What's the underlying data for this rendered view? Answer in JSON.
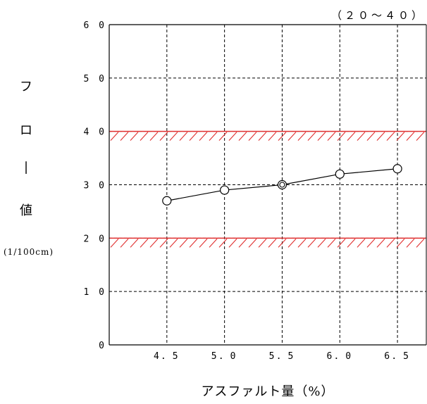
{
  "chart_data": {
    "type": "line",
    "x": [
      4.5,
      5.0,
      5.5,
      6.0,
      6.5
    ],
    "x_tick_labels": [
      "4．5",
      "5．0",
      "5．5",
      "6．0",
      "6．5"
    ],
    "y": [
      27,
      29,
      30,
      32,
      33
    ],
    "y_ticks": [
      0,
      10,
      20,
      30,
      40,
      50,
      60
    ],
    "y_tick_labels": [
      "0",
      "1 0",
      "2 0",
      "3 0",
      "4 0",
      "5 0",
      "6 0"
    ],
    "ylim": [
      0,
      60
    ],
    "xlim": [
      4.0,
      6.75
    ],
    "grid": true,
    "optimum_marker_x": 5.5,
    "limits": {
      "lower": 20,
      "upper": 40
    },
    "range_label": "（２０～４０）",
    "ylabel_chars": [
      "フ",
      "ロ",
      "|",
      "値"
    ],
    "ylabel_unit": "(1/100cm)",
    "xlabel": "アスファルト量（%）",
    "colors": {
      "line": "#000000",
      "limit": "#e03030",
      "grid": "#000000"
    }
  }
}
